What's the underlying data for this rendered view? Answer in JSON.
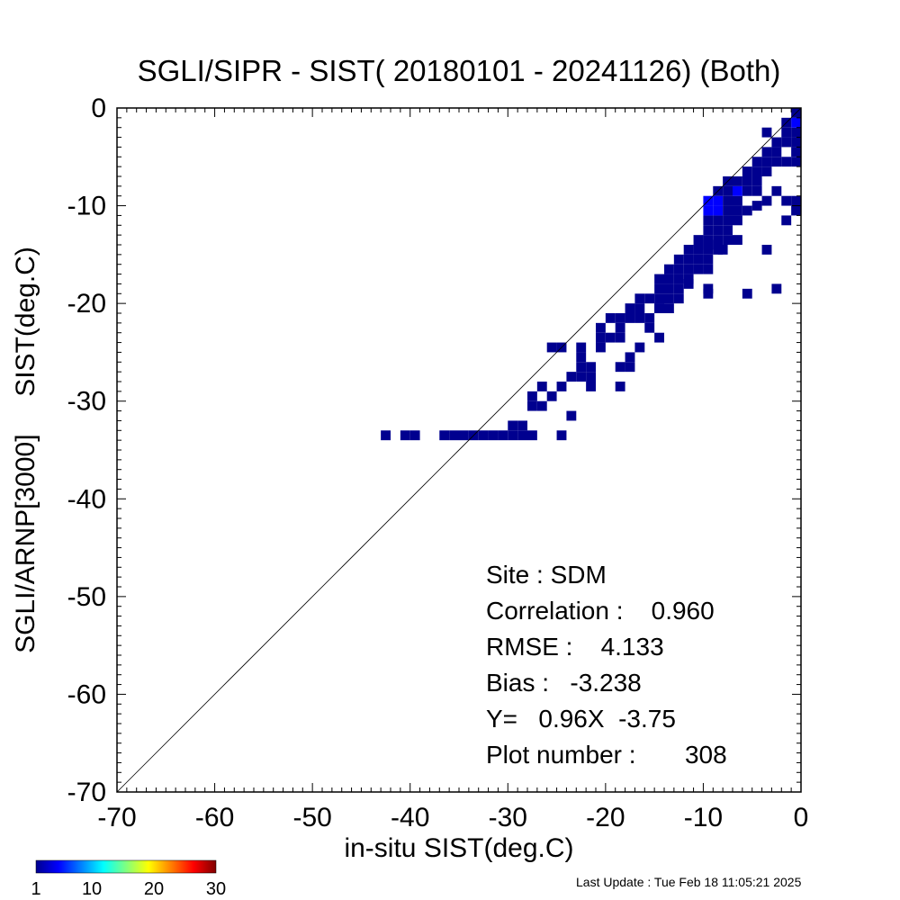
{
  "chart_data": {
    "type": "heatmap",
    "title": "SGLI/SIPR - SIST( 20180101 - 20241126) (Both)",
    "xlabel": "in-situ SIST(deg.C)",
    "ylabel": "SGLI/ARNP[3000]     SIST(deg.C)",
    "xlim": [
      -70,
      0
    ],
    "ylim": [
      -70,
      0
    ],
    "xticks": [
      -70,
      -60,
      -50,
      -40,
      -30,
      -20,
      -10,
      0
    ],
    "yticks": [
      0,
      -10,
      -20,
      -30,
      -40,
      -50,
      -60,
      -70
    ],
    "xtick_labels": [
      "-70",
      "-60",
      "-50",
      "-40",
      "-30",
      "-20",
      "-10",
      "0"
    ],
    "ytick_labels": [
      "0",
      "-10",
      "-20",
      "-30",
      "-40",
      "-50",
      "-60",
      "-70"
    ],
    "reference_line": "1:1",
    "grid": false,
    "bin_size_deg": 1,
    "count_bins": [
      [
        -42.5,
        -33.5,
        1
      ],
      [
        -40.5,
        -33.5,
        1
      ],
      [
        -39.5,
        -33.5,
        1
      ],
      [
        -36.5,
        -33.5,
        1
      ],
      [
        -35.5,
        -33.5,
        1
      ],
      [
        -34.5,
        -33.5,
        1
      ],
      [
        -33.5,
        -33.5,
        1
      ],
      [
        -32.5,
        -33.5,
        1
      ],
      [
        -31.5,
        -33.5,
        1
      ],
      [
        -30.5,
        -33.5,
        1
      ],
      [
        -29.5,
        -33.5,
        1
      ],
      [
        -28.5,
        -33.5,
        1
      ],
      [
        -27.5,
        -33.5,
        1
      ],
      [
        -29.5,
        -32.5,
        1
      ],
      [
        -28.5,
        -32.5,
        1
      ],
      [
        -24.5,
        -33.5,
        1
      ],
      [
        -27.5,
        -30.5,
        1
      ],
      [
        -26.5,
        -30.5,
        1
      ],
      [
        -23.5,
        -31.5,
        1
      ],
      [
        -27.5,
        -29.5,
        1
      ],
      [
        -25.5,
        -29.5,
        1
      ],
      [
        -26.5,
        -28.5,
        1
      ],
      [
        -24.5,
        -28.5,
        1
      ],
      [
        -23.5,
        -27.5,
        1
      ],
      [
        -21.5,
        -27.5,
        1
      ],
      [
        -22.5,
        -26.5,
        1
      ],
      [
        -21.5,
        -26.5,
        1
      ],
      [
        -18.5,
        -26.5,
        1
      ],
      [
        -17.5,
        -26.5,
        1
      ],
      [
        -22.5,
        -25.5,
        1
      ],
      [
        -22.5,
        -24.5,
        1
      ],
      [
        -25.5,
        -24.5,
        1
      ],
      [
        -24.5,
        -24.5,
        1
      ],
      [
        -20.5,
        -24.5,
        1
      ],
      [
        -16.5,
        -24.5,
        1
      ],
      [
        -20.5,
        -23.5,
        1
      ],
      [
        -19.5,
        -23.5,
        1
      ],
      [
        -18.5,
        -23.5,
        1
      ],
      [
        -20.5,
        -22.5,
        1
      ],
      [
        -18.5,
        -22.5,
        1
      ],
      [
        -15.5,
        -22.5,
        1
      ],
      [
        -19.5,
        -21.5,
        1
      ],
      [
        -18.5,
        -21.5,
        1
      ],
      [
        -17.5,
        -21.5,
        1
      ],
      [
        -17.5,
        -20.5,
        1
      ],
      [
        -15.5,
        -21.5,
        1
      ],
      [
        -16.5,
        -20.5,
        1
      ],
      [
        -14.5,
        -20.5,
        1
      ],
      [
        -13.5,
        -20.5,
        1
      ],
      [
        -16.5,
        -19.5,
        1
      ],
      [
        -15.5,
        -19.5,
        1
      ],
      [
        -14.5,
        -19.5,
        1
      ],
      [
        -13.5,
        -19.5,
        1
      ],
      [
        -12.5,
        -19.5,
        1
      ],
      [
        -14.5,
        -18.5,
        1
      ],
      [
        -13.5,
        -18.5,
        1
      ],
      [
        -12.5,
        -18.5,
        1
      ],
      [
        -14.5,
        -17.5,
        1
      ],
      [
        -13.5,
        -17.5,
        1
      ],
      [
        -12.5,
        -17.5,
        1
      ],
      [
        -11.5,
        -17.5,
        1
      ],
      [
        -13.5,
        -16.5,
        1
      ],
      [
        -12.5,
        -16.5,
        1
      ],
      [
        -11.5,
        -16.5,
        1
      ],
      [
        -10.5,
        -16.5,
        1
      ],
      [
        -12.5,
        -15.5,
        1
      ],
      [
        -11.5,
        -15.5,
        1
      ],
      [
        -10.5,
        -15.5,
        1
      ],
      [
        -9.5,
        -15.5,
        1
      ],
      [
        -11.5,
        -14.5,
        1
      ],
      [
        -10.5,
        -14.5,
        1
      ],
      [
        -9.5,
        -14.5,
        1
      ],
      [
        -8.5,
        -14.5,
        1
      ],
      [
        -10.5,
        -13.5,
        1
      ],
      [
        -9.5,
        -13.5,
        1
      ],
      [
        -8.5,
        -13.5,
        1
      ],
      [
        -7.5,
        -13.5,
        1
      ],
      [
        -9.5,
        -12.5,
        1
      ],
      [
        -8.5,
        -12.5,
        1
      ],
      [
        -7.5,
        -12.5,
        1
      ],
      [
        -9.5,
        -11.5,
        1
      ],
      [
        -8.5,
        -11.5,
        1
      ],
      [
        -7.5,
        -11.5,
        1
      ],
      [
        -6.5,
        -11.5,
        1
      ],
      [
        -9.5,
        -10.5,
        2
      ],
      [
        -8.5,
        -10.5,
        2
      ],
      [
        -7.5,
        -10.5,
        1
      ],
      [
        -6.5,
        -10.5,
        1
      ],
      [
        -5.5,
        -10.5,
        1
      ],
      [
        -9.5,
        -9.5,
        2
      ],
      [
        -8.5,
        -9.5,
        2
      ],
      [
        -7.5,
        -9.5,
        1
      ],
      [
        -6.5,
        -9.5,
        1
      ],
      [
        -8.5,
        -8.5,
        1
      ],
      [
        -7.5,
        -8.5,
        1
      ],
      [
        -6.5,
        -8.5,
        2
      ],
      [
        -5.5,
        -8.5,
        1
      ],
      [
        -4.5,
        -8.5,
        1
      ],
      [
        -7.5,
        -7.5,
        1
      ],
      [
        -6.5,
        -7.5,
        1
      ],
      [
        -5.5,
        -7.5,
        1
      ],
      [
        -4.5,
        -7.5,
        1
      ],
      [
        -5.5,
        -6.5,
        1
      ],
      [
        -4.5,
        -6.5,
        1
      ],
      [
        -3.5,
        -6.5,
        1
      ],
      [
        -4.5,
        -5.5,
        1
      ],
      [
        -3.5,
        -5.5,
        1
      ],
      [
        -2.5,
        -5.5,
        1
      ],
      [
        -1.5,
        -5.5,
        1
      ],
      [
        -0.5,
        -5.5,
        1
      ],
      [
        -3.5,
        -4.5,
        1
      ],
      [
        -2.5,
        -4.5,
        1
      ],
      [
        -0.5,
        -4.5,
        1
      ],
      [
        -2.5,
        -3.5,
        1
      ],
      [
        -1.5,
        -3.5,
        1
      ],
      [
        -0.5,
        -3.5,
        1
      ],
      [
        -1.5,
        -2.5,
        1
      ],
      [
        -0.5,
        -2.5,
        1
      ],
      [
        -0.5,
        -1.5,
        2
      ],
      [
        -1.5,
        -1.5,
        1
      ],
      [
        -0.5,
        -0.5,
        1
      ],
      [
        -3.5,
        -2.5,
        1
      ],
      [
        -9.5,
        -14.0,
        1
      ],
      [
        -8.0,
        -14.5,
        1
      ],
      [
        -6.5,
        -13.5,
        1
      ],
      [
        -4.5,
        -10.0,
        1
      ],
      [
        -3.5,
        -9.5,
        1
      ],
      [
        -2.5,
        -8.5,
        1
      ],
      [
        -1.5,
        -9.5,
        1
      ],
      [
        -0.5,
        -9.5,
        1
      ],
      [
        -0.5,
        -10.5,
        1
      ],
      [
        -1.5,
        -11.5,
        1
      ],
      [
        -3.5,
        -14.5,
        1
      ],
      [
        -9.5,
        -16.5,
        1
      ],
      [
        -9.5,
        -18.5,
        1
      ],
      [
        -9.5,
        -19.0,
        1
      ],
      [
        -5.5,
        -19.0,
        1
      ],
      [
        -2.5,
        -18.5,
        1
      ],
      [
        -14.5,
        -20.5,
        1
      ],
      [
        -16.5,
        -21.5,
        1
      ],
      [
        -14.5,
        -23.5,
        1
      ],
      [
        -17.5,
        -25.5,
        1
      ],
      [
        -21.5,
        -28.5,
        1
      ],
      [
        -18.5,
        -28.5,
        1
      ],
      [
        -22.5,
        -27.5,
        1
      ],
      [
        -11.5,
        -18.0,
        1
      ]
    ],
    "stats": {
      "site": "Site : SDM",
      "correlation": "Correlation :    0.960",
      "rmse": "RMSE :    4.133",
      "bias": "Bias :   -3.238",
      "regression": "Y=   0.96X  -3.75",
      "plot_number": "Plot number :       308"
    },
    "colorbar": {
      "range": [
        1,
        30
      ],
      "tick_labels": [
        "1",
        "10",
        "20",
        "30"
      ],
      "tick_values": [
        1,
        10,
        20,
        30
      ],
      "colormap": "jet",
      "colors": [
        "#00008f",
        "#0000ff",
        "#00ffff",
        "#ffff00",
        "#ff0000",
        "#800000"
      ]
    }
  },
  "footer": {
    "last_update": "Last Update : Tue Feb 18 11:05:21 2025"
  },
  "colors": {
    "axis": "#000000",
    "background": "#ffffff"
  }
}
